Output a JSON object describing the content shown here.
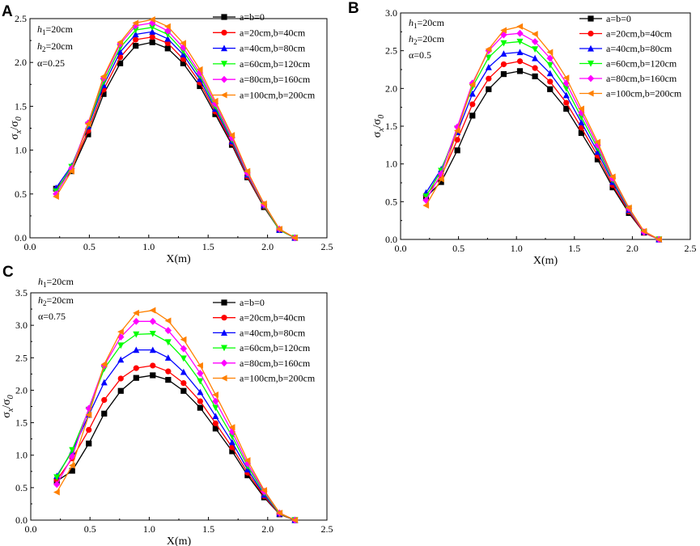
{
  "chart_data": [
    {
      "type": "line",
      "panel_label": "A",
      "xlabel": "X(m)",
      "ylabel_main": "σ",
      "ylabel_sub1": "x",
      "ylabel_sub2": "0",
      "xlim": [
        0.0,
        2.5
      ],
      "ylim": [
        0.0,
        2.5
      ],
      "xticks": [
        "0.0",
        "0.5",
        "1.0",
        "1.5",
        "2.0",
        "2.5"
      ],
      "yticks": [
        "0.0",
        "0.5",
        "1.0",
        "1.5",
        "2.0",
        "2.5"
      ],
      "annotations": {
        "h1": {
          "var": "h",
          "sub": "1",
          "text": "=20cm"
        },
        "h2": {
          "var": "h",
          "sub": "2",
          "text": "=20cm"
        },
        "alpha": "α=0.25"
      },
      "legend_position": "top-right",
      "x": [
        0.22,
        0.35,
        0.49,
        0.62,
        0.76,
        0.89,
        1.03,
        1.16,
        1.29,
        1.43,
        1.56,
        1.7,
        1.83,
        1.97,
        2.1,
        2.23
      ],
      "series": [
        {
          "name": "a=b=0",
          "color": "#000000",
          "marker": "square",
          "values": [
            0.56,
            0.76,
            1.18,
            1.64,
            1.99,
            2.19,
            2.23,
            2.16,
            1.99,
            1.73,
            1.41,
            1.06,
            0.69,
            0.35,
            0.09,
            0.0
          ]
        },
        {
          "name": "a=20cm,b=40cm",
          "color": "#ff0000",
          "marker": "circle",
          "values": [
            0.55,
            0.78,
            1.22,
            1.69,
            2.06,
            2.26,
            2.29,
            2.22,
            2.04,
            1.77,
            1.44,
            1.08,
            0.7,
            0.36,
            0.09,
            0.0
          ]
        },
        {
          "name": "a=40cm,b=80cm",
          "color": "#0000ff",
          "marker": "triangle-up",
          "values": [
            0.57,
            0.82,
            1.27,
            1.74,
            2.12,
            2.32,
            2.35,
            2.27,
            2.09,
            1.81,
            1.47,
            1.1,
            0.72,
            0.37,
            0.09,
            0.0
          ]
        },
        {
          "name": "a=60cm,b=120cm",
          "color": "#00ff00",
          "marker": "triangle-down",
          "values": [
            0.53,
            0.81,
            1.29,
            1.78,
            2.17,
            2.37,
            2.4,
            2.32,
            2.13,
            1.85,
            1.5,
            1.12,
            0.73,
            0.37,
            0.09,
            0.0
          ]
        },
        {
          "name": "a=80cm,b=160cm",
          "color": "#ff00ff",
          "marker": "diamond",
          "values": [
            0.5,
            0.79,
            1.31,
            1.82,
            2.21,
            2.42,
            2.45,
            2.36,
            2.17,
            1.88,
            1.53,
            1.14,
            0.74,
            0.38,
            0.1,
            0.0
          ]
        },
        {
          "name": "a=100cm,b=200cm",
          "color": "#ff8000",
          "marker": "triangle-left",
          "values": [
            0.47,
            0.76,
            1.3,
            1.84,
            2.23,
            2.45,
            2.49,
            2.41,
            2.22,
            1.92,
            1.56,
            1.17,
            0.76,
            0.39,
            0.1,
            0.0
          ]
        }
      ]
    },
    {
      "type": "line",
      "panel_label": "B",
      "xlabel": "X(m)",
      "ylabel_main": "σ",
      "ylabel_sub1": "x",
      "ylabel_sub2": "0",
      "xlim": [
        0.0,
        2.5
      ],
      "ylim": [
        0.0,
        3.0
      ],
      "xticks": [
        "0.0",
        "0.5",
        "1.0",
        "1.5",
        "2.0",
        "2.5"
      ],
      "yticks": [
        "0.0",
        "0.5",
        "1.0",
        "1.5",
        "2.0",
        "2.5",
        "3.0"
      ],
      "annotations": {
        "h1": {
          "var": "h",
          "sub": "1",
          "text": "=20cm"
        },
        "h2": {
          "var": "h",
          "sub": "2",
          "text": "=20cm"
        },
        "alpha": "α=0.5"
      },
      "legend_position": "top-right",
      "x": [
        0.22,
        0.35,
        0.49,
        0.62,
        0.76,
        0.89,
        1.03,
        1.16,
        1.29,
        1.43,
        1.56,
        1.7,
        1.83,
        1.97,
        2.1,
        2.23
      ],
      "series": [
        {
          "name": "a=b=0",
          "color": "#000000",
          "marker": "square",
          "values": [
            0.56,
            0.76,
            1.18,
            1.64,
            1.99,
            2.19,
            2.23,
            2.16,
            1.99,
            1.73,
            1.41,
            1.06,
            0.69,
            0.35,
            0.09,
            0.0
          ]
        },
        {
          "name": "a=20cm,b=40cm",
          "color": "#ff0000",
          "marker": "circle",
          "values": [
            0.59,
            0.83,
            1.32,
            1.79,
            2.13,
            2.32,
            2.36,
            2.27,
            2.09,
            1.81,
            1.48,
            1.11,
            0.72,
            0.37,
            0.09,
            0.0
          ]
        },
        {
          "name": "a=40cm,b=80cm",
          "color": "#0000ff",
          "marker": "triangle-up",
          "values": [
            0.62,
            0.93,
            1.42,
            1.93,
            2.28,
            2.46,
            2.48,
            2.4,
            2.2,
            1.91,
            1.55,
            1.16,
            0.76,
            0.39,
            0.1,
            0.0
          ]
        },
        {
          "name": "a=60cm,b=120cm",
          "color": "#00ff00",
          "marker": "triangle-down",
          "values": [
            0.57,
            0.91,
            1.47,
            2.02,
            2.41,
            2.6,
            2.62,
            2.52,
            2.31,
            2.0,
            1.62,
            1.21,
            0.79,
            0.4,
            0.1,
            0.0
          ]
        },
        {
          "name": "a=80cm,b=160cm",
          "color": "#ff00ff",
          "marker": "diamond",
          "values": [
            0.52,
            0.87,
            1.49,
            2.07,
            2.5,
            2.71,
            2.73,
            2.62,
            2.4,
            2.07,
            1.68,
            1.25,
            0.81,
            0.41,
            0.1,
            0.0
          ]
        },
        {
          "name": "a=100cm,b=200cm",
          "color": "#ff8000",
          "marker": "triangle-left",
          "values": [
            0.45,
            0.8,
            1.44,
            2.05,
            2.52,
            2.77,
            2.82,
            2.72,
            2.48,
            2.14,
            1.73,
            1.29,
            0.83,
            0.42,
            0.11,
            0.0
          ]
        }
      ]
    },
    {
      "type": "line",
      "panel_label": "C",
      "xlabel": "X(m)",
      "ylabel_main": "σ",
      "ylabel_sub1": "x",
      "ylabel_sub2": "0",
      "xlim": [
        0.0,
        2.5
      ],
      "ylim": [
        0.0,
        3.5
      ],
      "xticks": [
        "0.0",
        "0.5",
        "1.0",
        "1.5",
        "2.0",
        "2.5"
      ],
      "yticks": [
        "0.0",
        "0.5",
        "1.0",
        "1.5",
        "2.0",
        "2.5",
        "3.0",
        "3.5"
      ],
      "annotations": {
        "h1": {
          "var": "h",
          "sub": "1",
          "text": "=20cm"
        },
        "h2": {
          "var": "h",
          "sub": "2",
          "text": "=20cm"
        },
        "alpha": "α=0.75"
      },
      "legend_position": "top-right",
      "x": [
        0.22,
        0.35,
        0.49,
        0.62,
        0.76,
        0.89,
        1.03,
        1.16,
        1.29,
        1.43,
        1.56,
        1.7,
        1.83,
        1.97,
        2.1,
        2.23
      ],
      "series": [
        {
          "name": "a=b=0",
          "color": "#000000",
          "marker": "square",
          "values": [
            0.6,
            0.76,
            1.18,
            1.64,
            1.99,
            2.19,
            2.23,
            2.16,
            1.99,
            1.73,
            1.41,
            1.06,
            0.69,
            0.35,
            0.09,
            0.0
          ]
        },
        {
          "name": "a=20cm,b=40cm",
          "color": "#ff0000",
          "marker": "circle",
          "values": [
            0.62,
            0.95,
            1.39,
            1.85,
            2.18,
            2.34,
            2.38,
            2.29,
            2.11,
            1.83,
            1.49,
            1.12,
            0.73,
            0.37,
            0.09,
            0.0
          ]
        },
        {
          "name": "a=40cm,b=80cm",
          "color": "#0000ff",
          "marker": "triangle-up",
          "values": [
            0.68,
            1.06,
            1.62,
            2.12,
            2.47,
            2.62,
            2.62,
            2.5,
            2.28,
            1.97,
            1.6,
            1.2,
            0.78,
            0.39,
            0.1,
            0.0
          ]
        },
        {
          "name": "a=60cm,b=120cm",
          "color": "#00ff00",
          "marker": "triangle-down",
          "values": [
            0.66,
            1.08,
            1.7,
            2.33,
            2.69,
            2.86,
            2.87,
            2.74,
            2.49,
            2.14,
            1.73,
            1.29,
            0.83,
            0.42,
            0.1,
            0.0
          ]
        },
        {
          "name": "a=80cm,b=160cm",
          "color": "#ff00ff",
          "marker": "diamond",
          "values": [
            0.55,
            0.98,
            1.72,
            2.38,
            2.82,
            3.06,
            3.06,
            2.92,
            2.64,
            2.26,
            1.83,
            1.36,
            0.87,
            0.44,
            0.11,
            0.0
          ]
        },
        {
          "name": "a=100cm,b=200cm",
          "color": "#ff8000",
          "marker": "triangle-left",
          "values": [
            0.43,
            0.84,
            1.62,
            2.4,
            2.9,
            3.19,
            3.23,
            3.07,
            2.78,
            2.38,
            1.93,
            1.43,
            0.92,
            0.46,
            0.11,
            0.0
          ]
        }
      ]
    }
  ]
}
